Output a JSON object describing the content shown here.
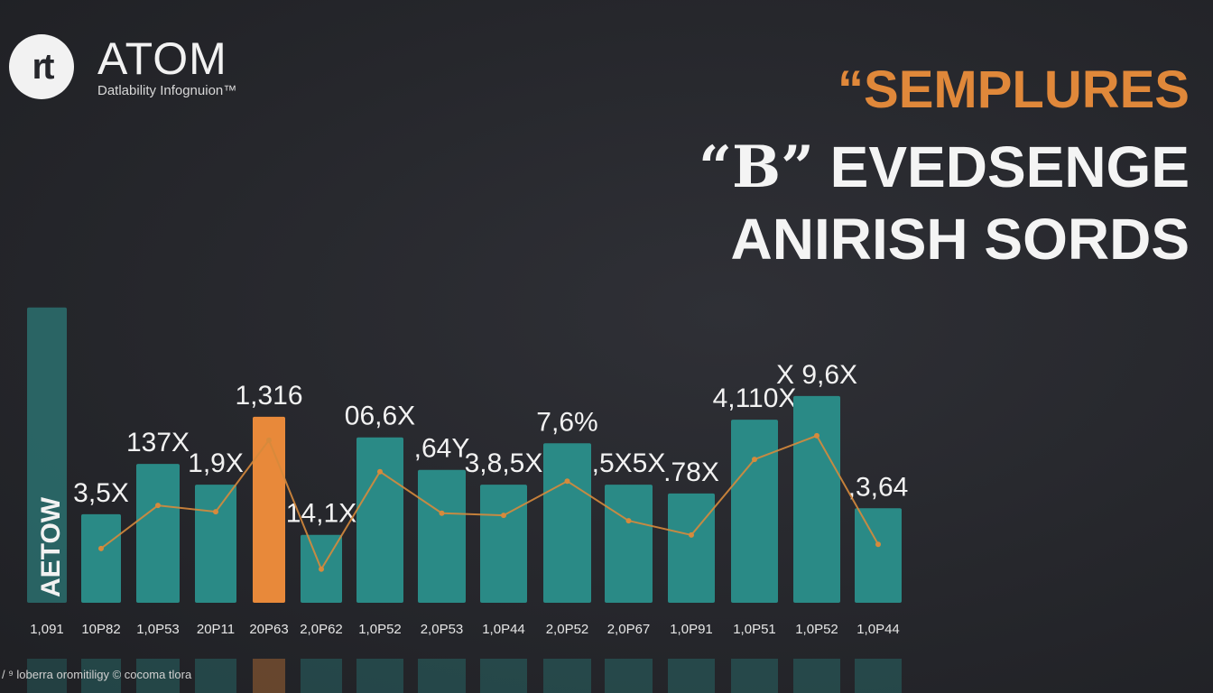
{
  "brand": {
    "logo_text": "rt",
    "name": "ATOM",
    "tagline": "Datlability Infognuion™"
  },
  "headline": {
    "line1": "“SEMPLURES",
    "line2_badge": "“B”",
    "line2": "EVEDSENGE",
    "line3": "ANIRISH SORDS"
  },
  "footer": {
    "text": "/ ⁹ loberra oromitiligy © cocoma tlora"
  },
  "chart_data": {
    "type": "bar",
    "side_label": "AETOW",
    "categories": [
      "1,091",
      "10P82",
      "1,0P53",
      "20P11",
      "20P63",
      "2,0P62",
      "1,0P52",
      "2,0P53",
      "1,0P44",
      "2,0P52",
      "2,0P67",
      "1,0P91",
      "1,0P51",
      "1,0P52",
      "1,0P44"
    ],
    "values": [
      100,
      30,
      47,
      40,
      63,
      23,
      56,
      45,
      40,
      54,
      40,
      37,
      62,
      70,
      32
    ],
    "value_labels": [
      "",
      "3,5X",
      "137X",
      "1,9X",
      "1,316",
      "14,1X",
      "06,6X",
      ",64Y",
      "3,8,5X",
      "7,6%",
      ",5X5X",
      ".78X",
      "4,110X",
      "X 9,6X",
      ",3,64"
    ],
    "highlight_index": 4,
    "ylim": [
      0,
      110
    ],
    "grid": false,
    "colors": {
      "bar": "#2a8a86",
      "highlight": "#e8893a",
      "side_bar": "#2c7a78",
      "trend": "#d68a3c"
    }
  }
}
